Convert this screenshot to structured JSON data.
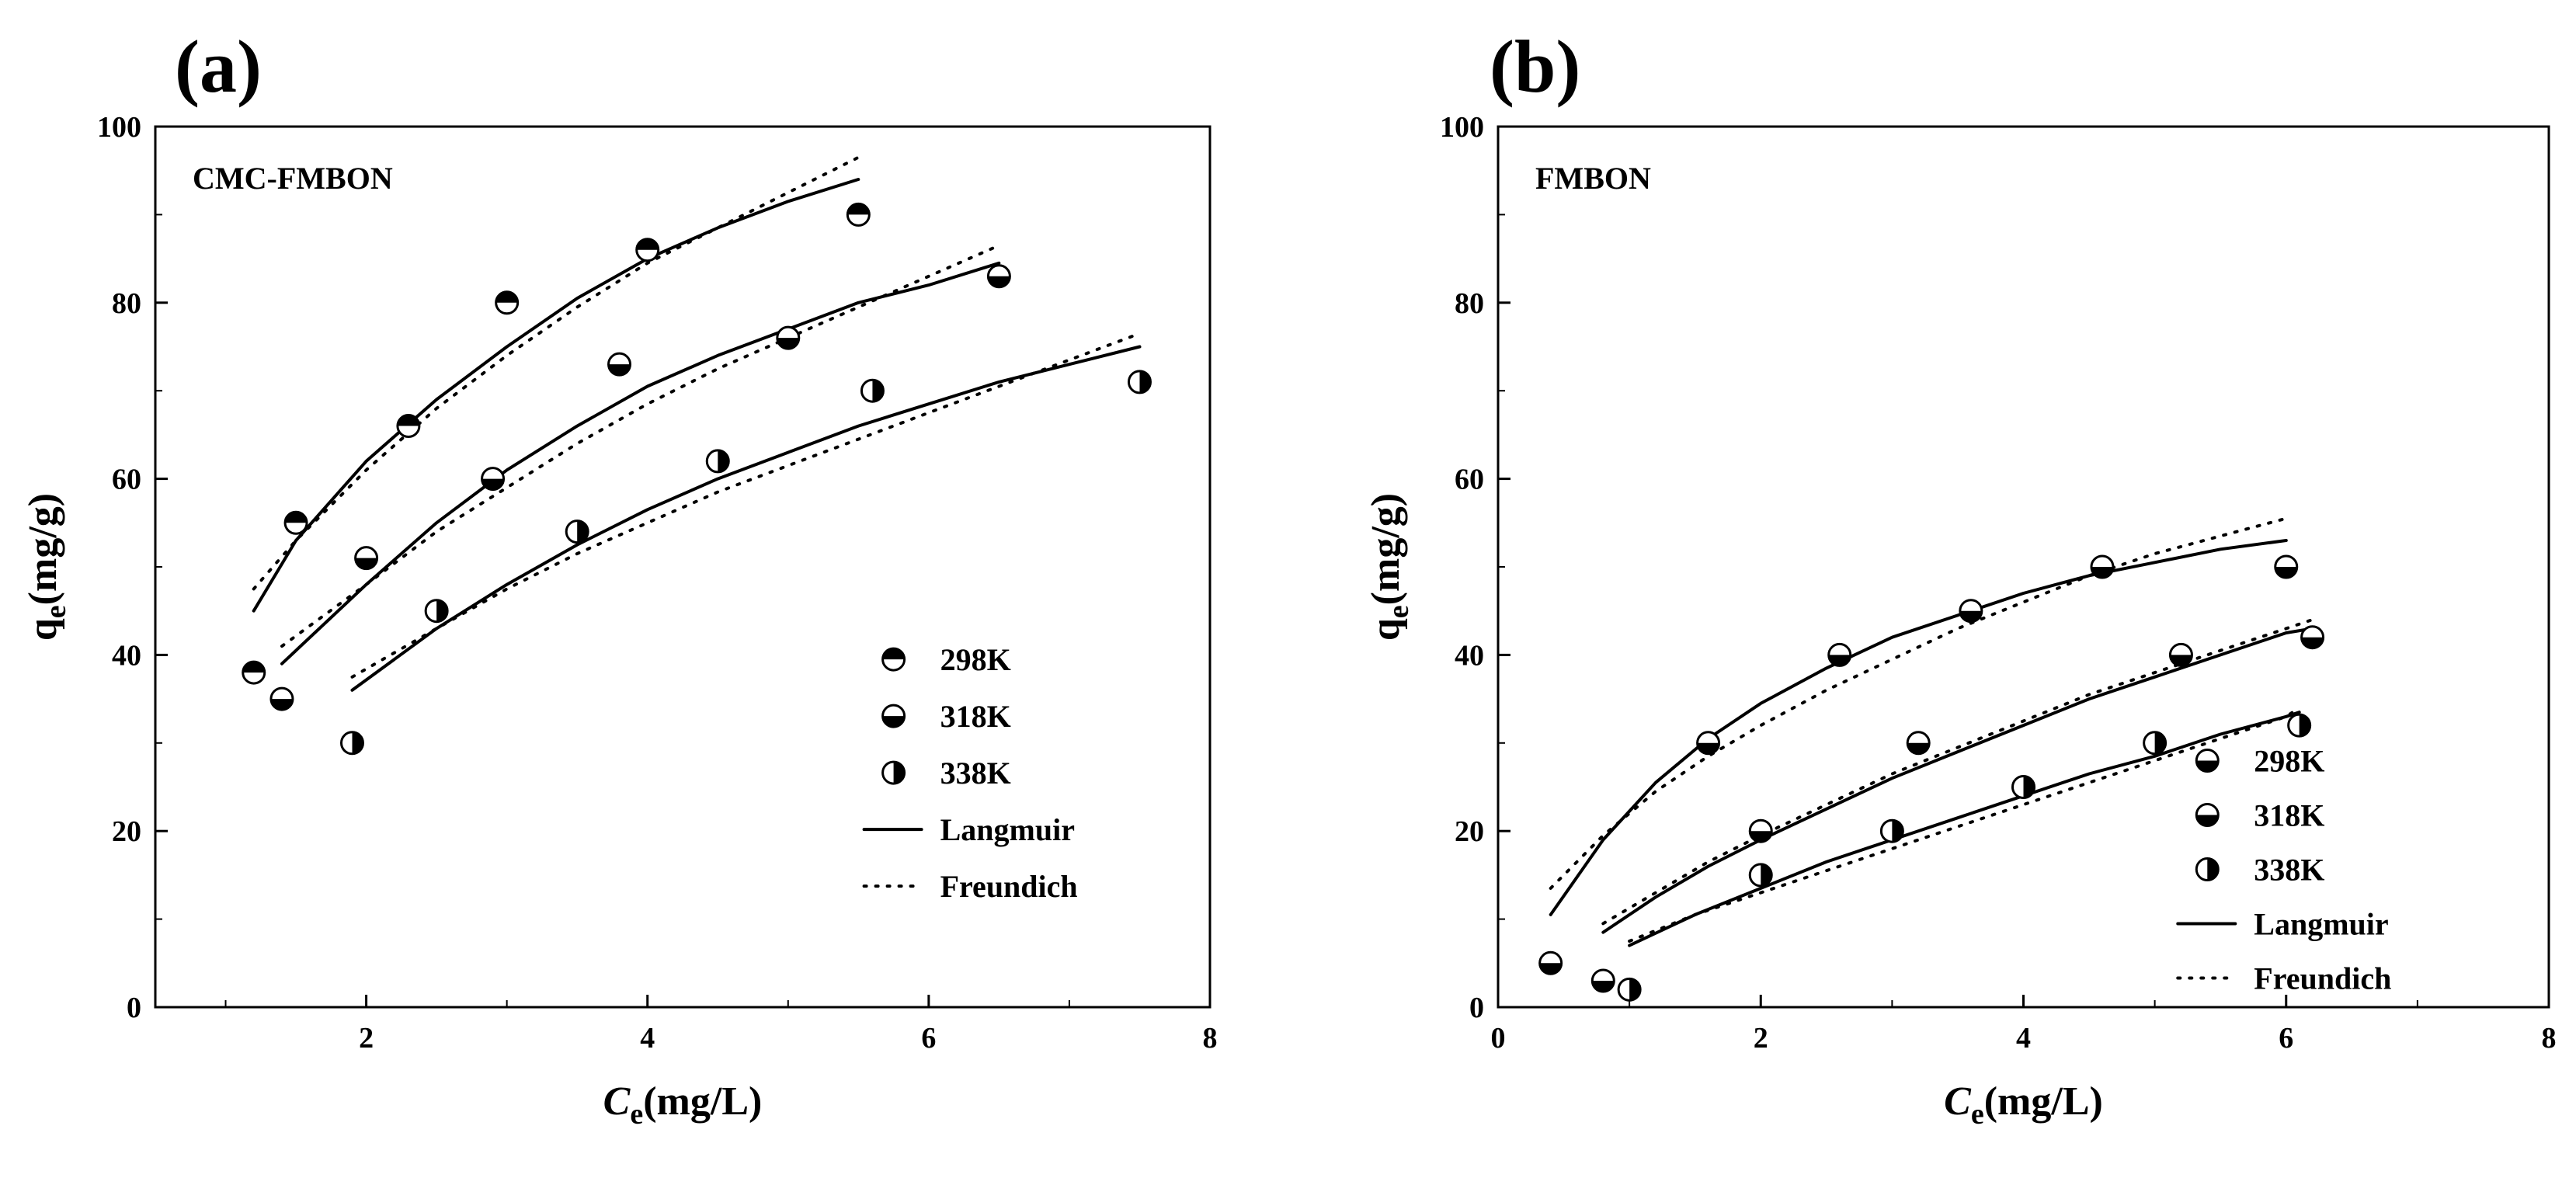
{
  "chart_data": [
    {
      "type": "scatter",
      "panel_label": "(a)",
      "title": "CMC-FMBON",
      "xlabel": "C",
      "xlabel_sub": "e",
      "xlabel_unit": "(mg/L)",
      "ylabel": "q",
      "ylabel_sub": "e",
      "ylabel_unit": "(mg/g)",
      "xlim": [
        0.5,
        8
      ],
      "ylim": [
        0,
        100
      ],
      "xticks": [
        2,
        4,
        6,
        8
      ],
      "yticks": [
        0,
        20,
        40,
        60,
        80,
        100
      ],
      "legend_position": "lower-right",
      "series": [
        {
          "name": "298K",
          "marker": "top-half",
          "x": [
            1.2,
            1.5,
            2.3,
            3.0,
            4.0,
            5.5
          ],
          "y": [
            38,
            55,
            66,
            80,
            86,
            90
          ]
        },
        {
          "name": "318K",
          "marker": "bottom-half",
          "x": [
            1.4,
            2.0,
            2.9,
            3.8,
            5.0,
            6.5
          ],
          "y": [
            35,
            51,
            60,
            73,
            76,
            83
          ]
        },
        {
          "name": "338K",
          "marker": "left-half",
          "x": [
            1.9,
            2.5,
            3.5,
            4.5,
            5.6,
            7.5
          ],
          "y": [
            30,
            45,
            54,
            62,
            70,
            71
          ]
        }
      ],
      "fits": [
        {
          "name": "Langmuir",
          "style": "solid",
          "curves": [
            {
              "x": [
                1.2,
                1.5,
                2.0,
                2.5,
                3.0,
                3.5,
                4.0,
                4.5,
                5.0,
                5.5
              ],
              "y": [
                45,
                53,
                62,
                69,
                75,
                80.5,
                85,
                88.5,
                91.5,
                94
              ]
            },
            {
              "x": [
                1.4,
                2.0,
                2.5,
                3.0,
                3.5,
                4.0,
                4.5,
                5.0,
                5.5,
                6.0,
                6.5
              ],
              "y": [
                39,
                48,
                55,
                61,
                66,
                70.5,
                74,
                77,
                80,
                82,
                84.5
              ]
            },
            {
              "x": [
                1.9,
                2.5,
                3.0,
                3.5,
                4.0,
                4.5,
                5.0,
                5.5,
                6.0,
                6.5,
                7.0,
                7.5
              ],
              "y": [
                36,
                43,
                48,
                52.5,
                56.5,
                60,
                63,
                66,
                68.5,
                71,
                73,
                75
              ]
            }
          ]
        },
        {
          "name": "Freundich",
          "style": "dotted",
          "curves": [
            {
              "x": [
                1.2,
                1.5,
                2.0,
                2.5,
                3.0,
                3.5,
                4.0,
                4.5,
                5.0,
                5.5
              ],
              "y": [
                47.5,
                53,
                61,
                68,
                74,
                79.5,
                84.5,
                88.5,
                92.5,
                96.5
              ]
            },
            {
              "x": [
                1.4,
                2.0,
                2.5,
                3.0,
                3.5,
                4.0,
                4.5,
                5.0,
                5.5,
                6.0,
                6.5
              ],
              "y": [
                41,
                48,
                54,
                59,
                64,
                68.5,
                72.5,
                76,
                79.5,
                83,
                86.5
              ]
            },
            {
              "x": [
                1.9,
                2.5,
                3.0,
                3.5,
                4.0,
                4.5,
                5.0,
                5.5,
                6.0,
                6.5,
                7.0,
                7.5
              ],
              "y": [
                37.5,
                43,
                47.5,
                51.5,
                55,
                58.5,
                61.5,
                64.5,
                67.5,
                70.5,
                73.5,
                76.5
              ]
            }
          ]
        }
      ]
    },
    {
      "type": "scatter",
      "panel_label": "(b)",
      "title": "FMBON",
      "xlabel": "C",
      "xlabel_sub": "e",
      "xlabel_unit": "(mg/L)",
      "ylabel": "q",
      "ylabel_sub": "e",
      "ylabel_unit": "(mg/g)",
      "xlim": [
        0,
        8
      ],
      "ylim": [
        0,
        100
      ],
      "xticks": [
        0,
        2,
        4,
        6,
        8
      ],
      "yticks": [
        0,
        20,
        40,
        60,
        80,
        100
      ],
      "legend_position": "lower-right",
      "series": [
        {
          "name": "298K",
          "marker": "bottom-half",
          "x": [
            0.4,
            1.6,
            2.6,
            3.6,
            4.6,
            6.0
          ],
          "y": [
            5,
            30,
            40,
            45,
            50,
            50
          ]
        },
        {
          "name": "318K",
          "marker": "bottom-half",
          "x": [
            0.8,
            2.0,
            3.2,
            5.2,
            6.2
          ],
          "y": [
            3,
            20,
            30,
            40,
            42
          ]
        },
        {
          "name": "338K",
          "marker": "left-half",
          "x": [
            1.0,
            2.0,
            3.0,
            4.0,
            5.0,
            6.1
          ],
          "y": [
            2,
            15,
            20,
            25,
            30,
            32
          ]
        }
      ],
      "fits": [
        {
          "name": "Langmuir",
          "style": "solid",
          "curves": [
            {
              "x": [
                0.4,
                0.8,
                1.2,
                1.6,
                2.0,
                2.5,
                3.0,
                3.5,
                4.0,
                4.5,
                5.0,
                5.5,
                6.0
              ],
              "y": [
                10.5,
                19,
                25.5,
                30.5,
                34.5,
                38.5,
                42,
                44.5,
                47,
                49,
                50.5,
                52,
                53
              ]
            },
            {
              "x": [
                0.8,
                1.2,
                1.6,
                2.0,
                2.5,
                3.0,
                3.5,
                4.0,
                4.5,
                5.0,
                5.5,
                6.0,
                6.2
              ],
              "y": [
                8.5,
                12.5,
                16,
                19,
                22.5,
                26,
                29,
                32,
                35,
                37.5,
                40,
                42.5,
                43
              ]
            },
            {
              "x": [
                1.0,
                1.5,
                2.0,
                2.5,
                3.0,
                3.5,
                4.0,
                4.5,
                5.0,
                5.5,
                6.0,
                6.1
              ],
              "y": [
                7,
                10.5,
                13.5,
                16.5,
                19,
                21.5,
                24,
                26.5,
                28.5,
                31,
                33,
                33.5
              ]
            }
          ]
        },
        {
          "name": "Freundich",
          "style": "dotted",
          "curves": [
            {
              "x": [
                0.4,
                0.8,
                1.2,
                1.6,
                2.0,
                2.5,
                3.0,
                3.5,
                4.0,
                4.5,
                5.0,
                5.5,
                6.0
              ],
              "y": [
                13.5,
                19.5,
                24.5,
                28.5,
                32,
                36,
                39.5,
                43,
                46,
                49,
                51.5,
                53.5,
                55.5
              ]
            },
            {
              "x": [
                0.8,
                1.2,
                1.6,
                2.0,
                2.5,
                3.0,
                3.5,
                4.0,
                4.5,
                5.0,
                5.5,
                6.0,
                6.2
              ],
              "y": [
                9.5,
                13,
                16.5,
                19.5,
                23,
                26.5,
                29.5,
                32.5,
                35.5,
                38,
                40.5,
                43,
                44
              ]
            },
            {
              "x": [
                1.0,
                1.5,
                2.0,
                2.5,
                3.0,
                3.5,
                4.0,
                4.5,
                5.0,
                5.5,
                6.0,
                6.1
              ],
              "y": [
                7.5,
                10.5,
                13,
                15.5,
                18,
                20.5,
                23,
                25.5,
                28,
                30.5,
                33,
                34
              ]
            }
          ]
        }
      ]
    }
  ]
}
